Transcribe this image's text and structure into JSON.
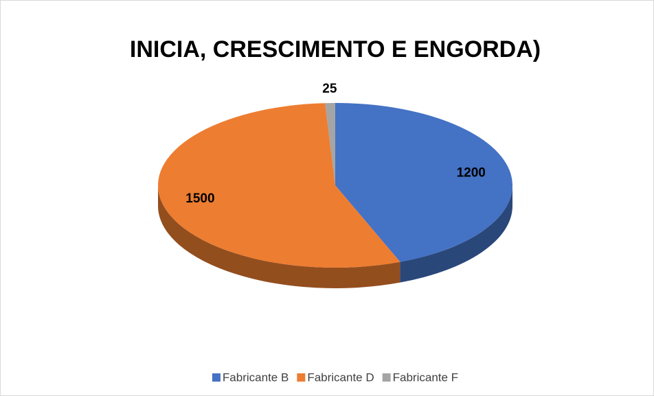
{
  "chart_data": {
    "type": "pie3d",
    "title": "INICIA, CRESCIMENTO E ENGORDA)",
    "categories": [
      "Fabricante B",
      "Fabricante D",
      "Fabricante F"
    ],
    "values": [
      1200,
      1500,
      25
    ],
    "colors": [
      "#4472c4",
      "#ed7d31",
      "#a5a5a5"
    ],
    "legend": "bottom"
  }
}
